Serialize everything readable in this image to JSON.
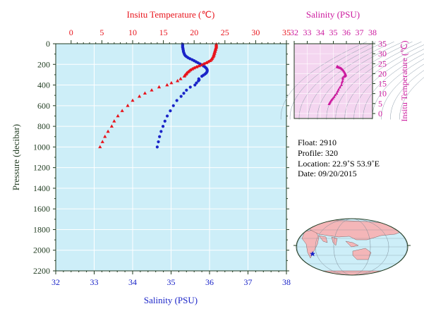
{
  "colors": {
    "temperature": "#e8141c",
    "salinity": "#1a24c8",
    "ts_diagram": "#cc1a9e",
    "plot_bg": "#cdeef8",
    "axis_text": "#1f3a1f",
    "land": "#f4b6b8",
    "ocean": "#cdeef8"
  },
  "chart_data": [
    {
      "type": "scatter",
      "xlabel_top": "Insitu Temperature (℃)",
      "xlabel_bottom": "Salinity (PSU)",
      "ylabel": "Pressure (decibar)",
      "temperature_axis": {
        "ticks": [
          0,
          5,
          10,
          15,
          20,
          25,
          30,
          35
        ],
        "range": [
          -2.5,
          35
        ]
      },
      "salinity_axis": {
        "ticks": [
          32,
          33,
          34,
          35,
          36,
          37,
          38
        ],
        "range": [
          32,
          38
        ]
      },
      "pressure_axis": {
        "ticks": [
          0,
          200,
          400,
          600,
          800,
          1000,
          1200,
          1400,
          1600,
          1800,
          2000,
          2200
        ],
        "range": [
          0,
          2200
        ],
        "inverted": true
      },
      "grid": true,
      "series": [
        {
          "name": "Insitu Temperature",
          "marker": "triangle",
          "points": [
            [
              23.6,
              5
            ],
            [
              23.6,
              15
            ],
            [
              23.6,
              25
            ],
            [
              23.6,
              35
            ],
            [
              23.5,
              45
            ],
            [
              23.5,
              55
            ],
            [
              23.4,
              65
            ],
            [
              23.4,
              75
            ],
            [
              23.3,
              85
            ],
            [
              23.3,
              95
            ],
            [
              23.2,
              105
            ],
            [
              23.2,
              115
            ],
            [
              23.1,
              125
            ],
            [
              23.0,
              135
            ],
            [
              22.9,
              145
            ],
            [
              22.8,
              155
            ],
            [
              22.6,
              165
            ],
            [
              22.3,
              175
            ],
            [
              22.0,
              185
            ],
            [
              21.6,
              195
            ],
            [
              21.2,
              205
            ],
            [
              20.8,
              215
            ],
            [
              20.4,
              225
            ],
            [
              20.0,
              235
            ],
            [
              19.7,
              245
            ],
            [
              19.4,
              255
            ],
            [
              19.2,
              265
            ],
            [
              19.0,
              275
            ],
            [
              18.8,
              285
            ],
            [
              18.7,
              295
            ],
            [
              18.5,
              305
            ],
            [
              18.4,
              315
            ],
            [
              17.8,
              340
            ],
            [
              17.3,
              360
            ],
            [
              16.3,
              380
            ],
            [
              15.6,
              400
            ],
            [
              14.3,
              420
            ],
            [
              13.1,
              450
            ],
            [
              12.0,
              480
            ],
            [
              11.1,
              510
            ],
            [
              10.0,
              550
            ],
            [
              9.2,
              600
            ],
            [
              8.3,
              650
            ],
            [
              7.6,
              700
            ],
            [
              7.0,
              750
            ],
            [
              6.6,
              800
            ],
            [
              6.0,
              850
            ],
            [
              5.5,
              900
            ],
            [
              5.1,
              950
            ],
            [
              4.7,
              1000
            ]
          ]
        },
        {
          "name": "Salinity",
          "marker": "circle",
          "points": [
            [
              35.3,
              5
            ],
            [
              35.3,
              15
            ],
            [
              35.3,
              25
            ],
            [
              35.3,
              35
            ],
            [
              35.31,
              45
            ],
            [
              35.31,
              55
            ],
            [
              35.32,
              65
            ],
            [
              35.32,
              75
            ],
            [
              35.33,
              85
            ],
            [
              35.34,
              95
            ],
            [
              35.35,
              105
            ],
            [
              35.37,
              115
            ],
            [
              35.4,
              125
            ],
            [
              35.44,
              135
            ],
            [
              35.49,
              145
            ],
            [
              35.55,
              155
            ],
            [
              35.6,
              165
            ],
            [
              35.65,
              175
            ],
            [
              35.7,
              185
            ],
            [
              35.75,
              195
            ],
            [
              35.8,
              205
            ],
            [
              35.84,
              215
            ],
            [
              35.88,
              225
            ],
            [
              35.91,
              235
            ],
            [
              35.93,
              245
            ],
            [
              35.94,
              255
            ],
            [
              35.94,
              265
            ],
            [
              35.93,
              275
            ],
            [
              35.91,
              285
            ],
            [
              35.88,
              295
            ],
            [
              35.84,
              305
            ],
            [
              35.8,
              315
            ],
            [
              35.72,
              340
            ],
            [
              35.73,
              350
            ],
            [
              35.71,
              360
            ],
            [
              35.66,
              380
            ],
            [
              35.62,
              400
            ],
            [
              35.5,
              420
            ],
            [
              35.4,
              450
            ],
            [
              35.33,
              480
            ],
            [
              35.26,
              510
            ],
            [
              35.15,
              550
            ],
            [
              35.06,
              600
            ],
            [
              34.98,
              650
            ],
            [
              34.9,
              700
            ],
            [
              34.84,
              750
            ],
            [
              34.79,
              800
            ],
            [
              34.74,
              850
            ],
            [
              34.7,
              900
            ],
            [
              34.67,
              950
            ],
            [
              34.64,
              1000
            ]
          ]
        }
      ]
    },
    {
      "type": "scatter",
      "xlabel": "Salinity (PSU)",
      "ylabel": "Insitu Temperature (℃)",
      "salinity_axis": {
        "ticks": [
          32,
          33,
          34,
          35,
          36,
          37,
          38
        ],
        "range": [
          32,
          38
        ]
      },
      "temperature_axis": {
        "ticks": [
          0,
          5,
          10,
          15,
          20,
          25,
          30,
          35
        ],
        "range": [
          -2.5,
          35
        ]
      },
      "density_contours": true
    }
  ],
  "float_info": {
    "float": "Float:  2910",
    "profile": "Profile:  320",
    "location": "Location:  22.9˚S  53.9˚E",
    "date": "Date:  09/20/2015"
  },
  "map": {
    "marker_lat": -22.9,
    "marker_lon": 53.9
  }
}
